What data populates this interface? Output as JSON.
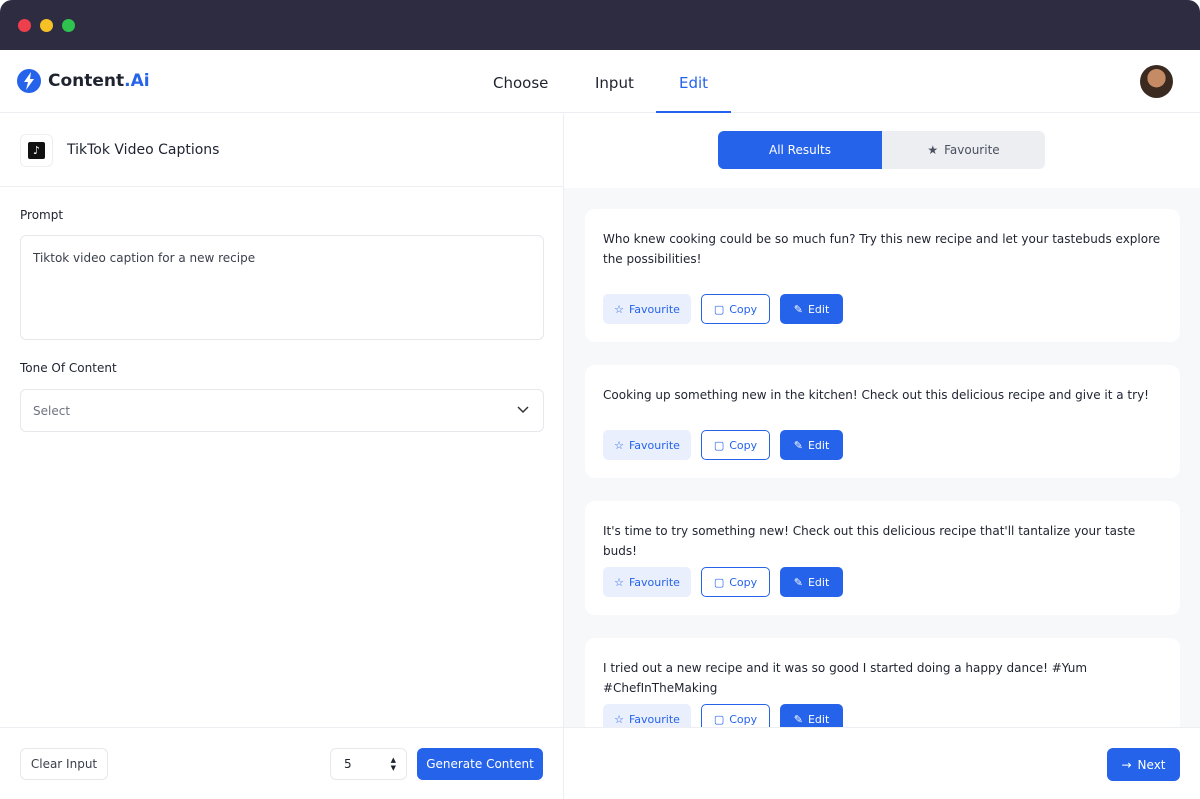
{
  "app": {
    "logo_main": "Content",
    "logo_accent": ".Ai"
  },
  "nav": {
    "tabs": [
      {
        "label": "Choose"
      },
      {
        "label": "Input"
      },
      {
        "label": "Edit"
      }
    ],
    "active": "Edit"
  },
  "left": {
    "tool_title": "TikTok Video Captions",
    "prompt_label": "Prompt",
    "prompt_value": "Tiktok video caption for a new recipe",
    "tone_label": "Tone Of Content",
    "tone_placeholder": "Select",
    "clear_label": "Clear Input",
    "count_value": "5",
    "generate_label": "Generate Content"
  },
  "right": {
    "seg_all": "All Results",
    "seg_fav": "Favourite",
    "next_label": "Next",
    "results": [
      {
        "text": "Who knew cooking could be so much fun? Try this new recipe and let your tastebuds explore the possibilities!"
      },
      {
        "text": "Cooking up something new in the kitchen! Check out this delicious recipe and give it a try!"
      },
      {
        "text": "It's time to try something new! Check out this delicious recipe that'll tantalize your taste buds!"
      },
      {
        "text": "I tried out a new recipe and it was so good I started doing a happy dance! #Yum #ChefInTheMaking"
      }
    ],
    "actions": {
      "favourite": "Favourite",
      "copy": "Copy",
      "edit": "Edit"
    }
  },
  "colors": {
    "accent": "#2563eb",
    "titlebar": "#2e2c41"
  }
}
